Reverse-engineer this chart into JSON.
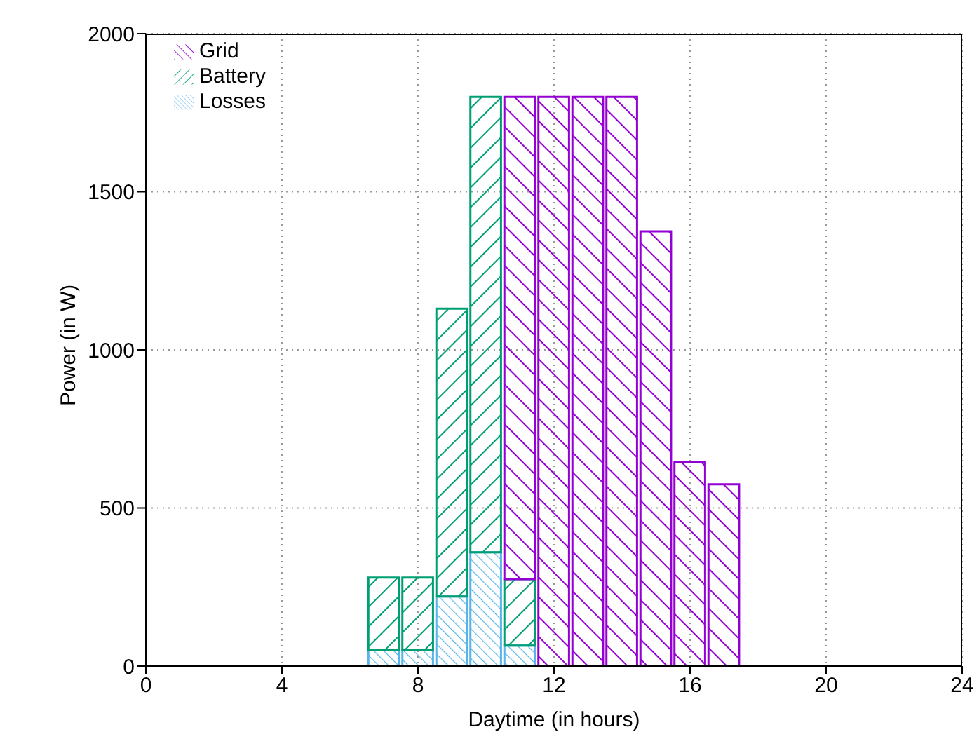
{
  "chart_data": {
    "type": "bar",
    "stacked": true,
    "xlabel": "Daytime (in hours)",
    "ylabel": "Power (in W)",
    "x": [
      7,
      8,
      9,
      10,
      11,
      12,
      13,
      14,
      15,
      16,
      17
    ],
    "series": [
      {
        "name": "Losses",
        "color": "#56b4e9",
        "values": [
          50,
          50,
          220,
          360,
          65,
          null,
          null,
          null,
          null,
          null,
          null
        ]
      },
      {
        "name": "Battery",
        "color": "#009e73",
        "values": [
          230,
          230,
          910,
          1440,
          210,
          null,
          null,
          null,
          null,
          null,
          null
        ]
      },
      {
        "name": "Grid",
        "color": "#9400d3",
        "values": [
          null,
          null,
          null,
          null,
          1525,
          1800,
          1800,
          1800,
          1375,
          645,
          575
        ]
      }
    ],
    "xlim": [
      0,
      24
    ],
    "xticks": [
      0,
      4,
      8,
      12,
      16,
      20,
      24
    ],
    "ylim": [
      0,
      2000
    ],
    "yticks": [
      0,
      500,
      1000,
      1500,
      2000
    ],
    "grid": true,
    "legend": "top left"
  }
}
